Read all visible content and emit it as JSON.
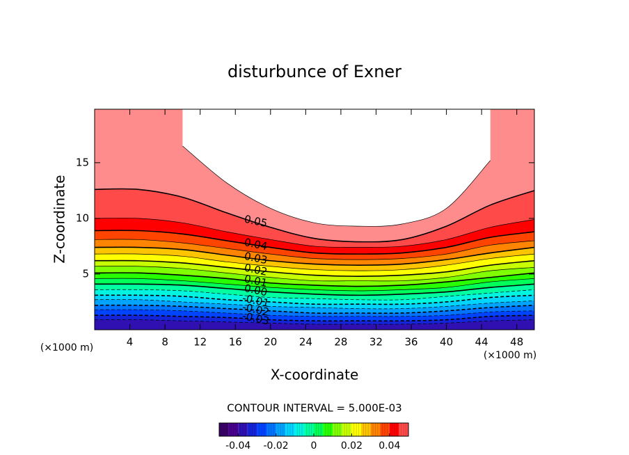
{
  "chart_data": {
    "type": "contour",
    "title": "disturbunce of Exner",
    "xlabel": "X-coordinate",
    "ylabel": "Z-coordinate",
    "x_unit": "(×1000 m)",
    "xlim": [
      0,
      50
    ],
    "ylim": [
      0,
      19.8
    ],
    "xticks": [
      4,
      8,
      12,
      16,
      20,
      24,
      28,
      32,
      36,
      40,
      44,
      48
    ],
    "yticks": [
      5,
      10,
      15
    ],
    "contour_interval": {
      "value": 0.005,
      "label": "CONTOUR INTERVAL = 5.000E-03"
    },
    "colors": [
      "#3a0068",
      "#48008c",
      "#3010b0",
      "#1424d8",
      "#0044ff",
      "#0074ff",
      "#00a4ff",
      "#00d4ff",
      "#00f4e0",
      "#00ffa0",
      "#00ff58",
      "#28ff00",
      "#80ff00",
      "#c8ff00",
      "#ffff00",
      "#ffc400",
      "#ff8400",
      "#ff4400",
      "#ff0000",
      "#ff4a4a",
      "#ff8c8c"
    ],
    "clim": [
      -0.05,
      0.05
    ],
    "cbar_ticks": [
      -0.04,
      -0.02,
      0,
      0.02,
      0.04
    ],
    "x": [
      0,
      5,
      10,
      15,
      20,
      25,
      30,
      35,
      40,
      45,
      50
    ],
    "contours": [
      {
        "level": -0.035,
        "z": [
          0.9,
          0.9,
          0.8,
          0.7,
          0.6,
          0.5,
          0.5,
          0.5,
          0.6,
          0.8,
          0.9
        ]
      },
      {
        "level": -0.03,
        "label": "-0.03",
        "z": [
          1.3,
          1.3,
          1.2,
          1.1,
          0.9,
          0.8,
          0.8,
          0.8,
          0.9,
          1.2,
          1.3
        ]
      },
      {
        "level": -0.025,
        "z": [
          1.8,
          1.8,
          1.7,
          1.5,
          1.3,
          1.2,
          1.2,
          1.2,
          1.3,
          1.6,
          1.7
        ]
      },
      {
        "level": -0.02,
        "label": "-0.02",
        "z": [
          2.2,
          2.2,
          2.1,
          1.9,
          1.7,
          1.5,
          1.5,
          1.5,
          1.7,
          2.0,
          2.2
        ]
      },
      {
        "level": -0.015,
        "z": [
          2.7,
          2.7,
          2.5,
          2.3,
          2.1,
          2.0,
          1.9,
          1.9,
          2.1,
          2.4,
          2.6
        ]
      },
      {
        "level": -0.01,
        "label": "-0.01",
        "z": [
          3.1,
          3.1,
          3.0,
          2.7,
          2.5,
          2.3,
          2.3,
          2.3,
          2.5,
          2.9,
          3.1
        ]
      },
      {
        "level": -0.005,
        "z": [
          3.6,
          3.6,
          3.5,
          3.2,
          2.9,
          2.8,
          2.7,
          2.7,
          3.0,
          3.3,
          3.6
        ]
      },
      {
        "level": 0,
        "label": "0.00",
        "z": [
          4.1,
          4.1,
          4.0,
          3.7,
          3.4,
          3.2,
          3.1,
          3.2,
          3.4,
          3.8,
          4.1
        ]
      },
      {
        "level": 0.005,
        "z": [
          4.6,
          4.6,
          4.4,
          4.1,
          3.8,
          3.6,
          3.5,
          3.6,
          3.8,
          4.3,
          4.6
        ]
      },
      {
        "level": 0.01,
        "label": "0.01",
        "z": [
          5.1,
          5.1,
          4.9,
          4.6,
          4.2,
          4.0,
          3.9,
          4.0,
          4.3,
          4.7,
          5.1
        ]
      },
      {
        "level": 0.015,
        "z": [
          5.7,
          5.7,
          5.5,
          5.1,
          4.7,
          4.4,
          4.4,
          4.4,
          4.7,
          5.3,
          5.6
        ]
      },
      {
        "level": 0.02,
        "label": "0.02",
        "z": [
          6.2,
          6.2,
          6.0,
          5.6,
          5.2,
          4.9,
          4.8,
          4.9,
          5.2,
          5.8,
          6.2
        ]
      },
      {
        "level": 0.025,
        "z": [
          6.8,
          6.8,
          6.6,
          6.1,
          5.7,
          5.4,
          5.3,
          5.4,
          5.8,
          6.4,
          6.8
        ]
      },
      {
        "level": 0.03,
        "label": "0.03",
        "z": [
          7.4,
          7.4,
          7.2,
          6.7,
          6.2,
          5.9,
          5.8,
          5.9,
          6.3,
          6.9,
          7.4
        ]
      },
      {
        "level": 0.035,
        "z": [
          8.1,
          8.1,
          7.8,
          7.3,
          6.8,
          6.4,
          6.3,
          6.4,
          6.8,
          7.6,
          8.0
        ]
      },
      {
        "level": 0.04,
        "label": "0.04",
        "z": [
          8.9,
          8.9,
          8.6,
          8.0,
          7.4,
          6.9,
          6.8,
          6.9,
          7.4,
          8.3,
          8.8
        ]
      },
      {
        "level": 0.045,
        "z": [
          10.0,
          10.0,
          9.6,
          8.8,
          8.1,
          7.5,
          7.4,
          7.5,
          8.1,
          9.2,
          9.9
        ]
      },
      {
        "level": 0.05,
        "label": "0.05",
        "z": [
          12.6,
          12.6,
          11.9,
          10.5,
          9.2,
          8.2,
          7.9,
          8.1,
          9.3,
          11.2,
          12.5
        ]
      },
      {
        "level": 0.055,
        "z": [
          null,
          null,
          16.5,
          13.2,
          10.9,
          9.6,
          9.3,
          9.5,
          10.9,
          15.2,
          null
        ]
      }
    ]
  }
}
